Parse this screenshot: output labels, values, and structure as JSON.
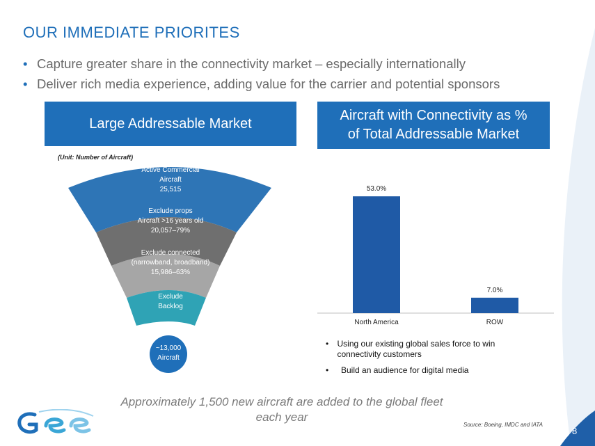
{
  "slide": {
    "title": "OUR IMMEDIATE PRIORITES",
    "bullets": [
      "Capture greater share in the connectivity market – especially internationally",
      "Deliver rich media experience, adding value for the carrier and potential sponsors"
    ],
    "page_number": "8"
  },
  "left_panel": {
    "heading": "Large Addressable Market",
    "unit_note": "(Unit: Number of Aircraft)",
    "funnel": [
      {
        "lines": [
          "Active Commercial",
          "Aircraft",
          "25,515"
        ],
        "color": "#2e75b6"
      },
      {
        "lines": [
          "Exclude props",
          "Aircraft >16 years old",
          "20,057–79%"
        ],
        "color": "#6f6f6f"
      },
      {
        "lines": [
          "Exclude connected",
          "(narrowband, broadband)",
          "15,986–63%"
        ],
        "color": "#a6a6a6"
      },
      {
        "lines": [
          "Exclude",
          "Backlog"
        ],
        "color": "#2fa3b5"
      },
      {
        "lines": [
          "~13,000",
          "Aircraft"
        ],
        "color": "#1f6fb9"
      }
    ]
  },
  "right_panel": {
    "heading_line1": "Aircraft with Connectivity as %",
    "heading_line2": "of Total Addressable Market",
    "notes": [
      "Using our existing global sales force to win connectivity customers",
      "Build an audience for digital media"
    ]
  },
  "chart_data": {
    "type": "bar",
    "categories": [
      "North America",
      "ROW"
    ],
    "values": [
      53.0,
      7.0
    ],
    "data_labels": [
      "53.0%",
      "7.0%"
    ],
    "ylim": [
      0,
      60
    ],
    "grid": false,
    "bar_color": "#1f5aa6"
  },
  "footer": {
    "note": "Approximately 1,500 new aircraft are added to the global fleet each year",
    "source": "Source: Boeing, IMDC and IATA"
  },
  "colors": {
    "accent": "#1f6fb9",
    "text_gray": "#6a6a6a"
  }
}
